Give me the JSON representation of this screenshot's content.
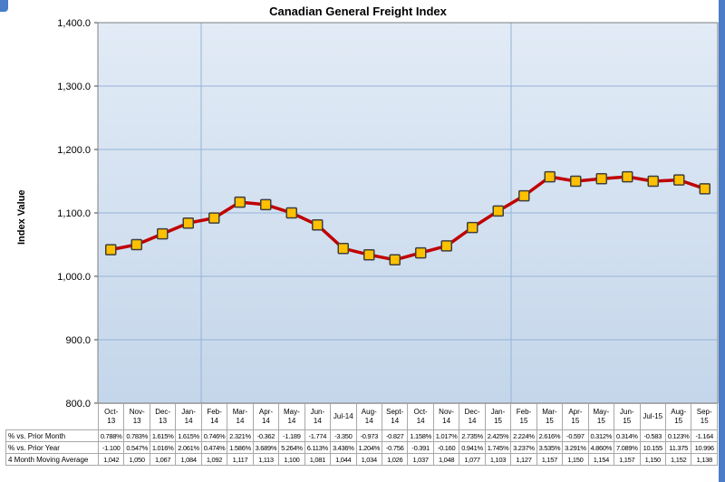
{
  "accent_color": "#4a7cc7",
  "chart_data": {
    "type": "line",
    "title": "Canadian General Freight Index",
    "ylabel": "Index Value",
    "ylim": [
      800,
      1400
    ],
    "ytick_step": 100,
    "ytick_labels": [
      "1,400.0",
      "1,300.0",
      "1,200.0",
      "1,100.0",
      "1,000.0",
      "900.0",
      "800.0"
    ],
    "grid": "on",
    "legend": "none",
    "line_color": "#c00000",
    "marker_fill": "#ffc000",
    "marker_stroke": "#3f3f3f",
    "grid_color": "#95b3d7",
    "plot_border_color": "#7f7f7f",
    "plot_bg_top": "#e2ebf6",
    "plot_bg_bottom": "#c4d6ea",
    "vline_after_indices": [
      4,
      16
    ],
    "categories": [
      "Oct-13",
      "Nov-13",
      "Dec-13",
      "Jan-14",
      "Feb-14",
      "Mar-14",
      "Apr-14",
      "May-14",
      "Jun-14",
      "Jul-14",
      "Aug-14",
      "Sept-14",
      "Oct-14",
      "Nov-14",
      "Dec-14",
      "Jan-15",
      "Feb-15",
      "Mar-15",
      "Apr-15",
      "May-15",
      "Jun-15",
      "Jul-15",
      "Aug-15",
      "Sep-15"
    ],
    "series": [
      {
        "name": "Canadian General Freight Index",
        "values": [
          1042,
          1050,
          1067,
          1084,
          1092,
          1117,
          1113,
          1100,
          1081,
          1044,
          1034,
          1026,
          1037,
          1048,
          1077,
          1103,
          1127,
          1157,
          1150,
          1154,
          1157,
          1150,
          1152,
          1138
        ]
      }
    ]
  },
  "table": {
    "month_cells": [
      [
        "Oct-",
        "13"
      ],
      [
        "Nov-",
        "13"
      ],
      [
        "Dec-",
        "13"
      ],
      [
        "Jan-",
        "14"
      ],
      [
        "Feb-",
        "14"
      ],
      [
        "Mar-",
        "14"
      ],
      [
        "Apr-",
        "14"
      ],
      [
        "May-",
        "14"
      ],
      [
        "Jun-",
        "14"
      ],
      [
        "Jul-14"
      ],
      [
        "Aug-",
        "14"
      ],
      [
        "Sept-",
        "14"
      ],
      [
        "Oct-",
        "14"
      ],
      [
        "Nov-",
        "14"
      ],
      [
        "Dec-",
        "14"
      ],
      [
        "Jan-",
        "15"
      ],
      [
        "Feb-",
        "15"
      ],
      [
        "Mar-",
        "15"
      ],
      [
        "Apr-",
        "15"
      ],
      [
        "May-",
        "15"
      ],
      [
        "Jun-",
        "15"
      ],
      [
        "Jul-15"
      ],
      [
        "Aug-",
        "15"
      ],
      [
        "Sep-",
        "15"
      ]
    ],
    "rows": [
      {
        "label": "% vs. Prior Month",
        "values": [
          "0.788%",
          "0.783%",
          "1.615%",
          "1.615%",
          "0.746%",
          "2.321%",
          "-0.362",
          "-1.189",
          "-1.774",
          "-3.350",
          "-0.973",
          "-0.827",
          "1.158%",
          "1.017%",
          "2.735%",
          "2.425%",
          "2.224%",
          "2.616%",
          "-0.597",
          "0.312%",
          "0.314%",
          "-0.583",
          "0.123%",
          "-1.164"
        ]
      },
      {
        "label": "% vs. Prior Year",
        "values": [
          "-1.100",
          "0.547%",
          "1.016%",
          "2.061%",
          "0.474%",
          "1.586%",
          "3.689%",
          "5.264%",
          "6.113%",
          "3.436%",
          "1.204%",
          "-0.756",
          "-0.391",
          "-0.160",
          "0.941%",
          "1.745%",
          "3.237%",
          "3.535%",
          "3.291%",
          "4.860%",
          "7.089%",
          "10.155",
          "11.375",
          "10.996"
        ]
      },
      {
        "label": "4 Month Moving Average",
        "values": [
          "1,042",
          "1,050",
          "1,067",
          "1,084",
          "1,092",
          "1,117",
          "1,113",
          "1,100",
          "1,081",
          "1,044",
          "1,034",
          "1,026",
          "1,037",
          "1,048",
          "1,077",
          "1,103",
          "1,127",
          "1,157",
          "1,150",
          "1,154",
          "1,157",
          "1,150",
          "1,152",
          "1,138"
        ]
      }
    ]
  }
}
